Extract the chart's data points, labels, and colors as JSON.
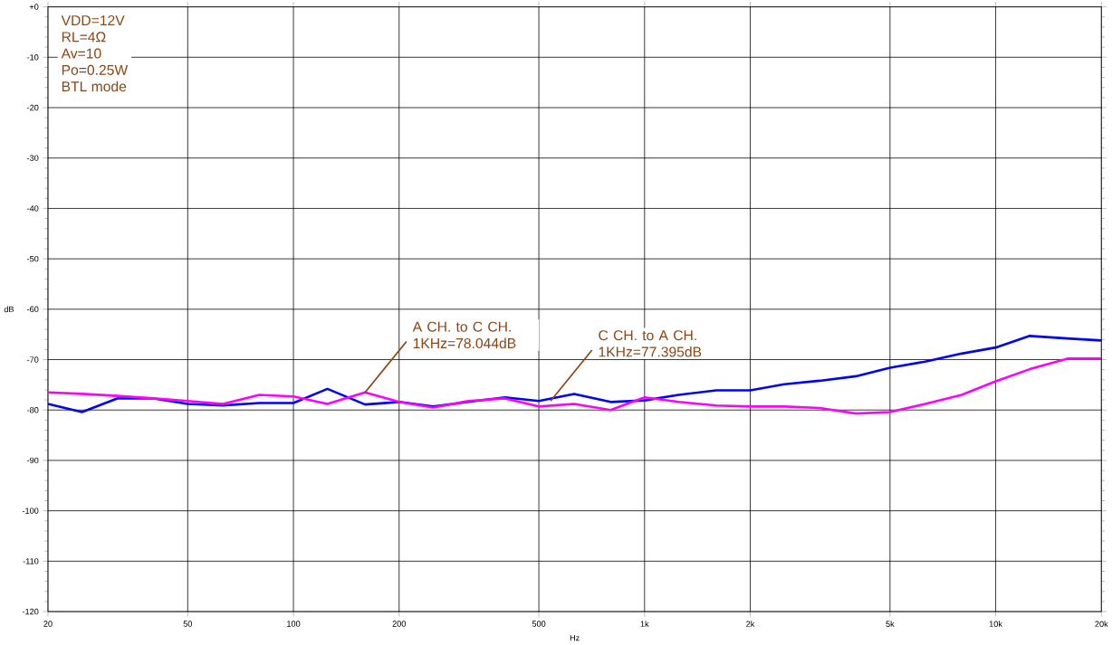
{
  "chart_data": {
    "type": "line",
    "xlabel": "Hz",
    "ylabel": "dB",
    "log": "x",
    "grid": true,
    "marker": "none",
    "line_style": "solid",
    "x": [
      20,
      25,
      31.5,
      40,
      50,
      63,
      80,
      100,
      125,
      160,
      200,
      250,
      315,
      400,
      500,
      630,
      800,
      1000,
      1250,
      1600,
      2000,
      2500,
      3150,
      4000,
      5000,
      6300,
      8000,
      10000,
      12500,
      16000,
      20000
    ],
    "series": [
      {
        "color": "#0000ff",
        "values": [
          -78.8,
          -80.4,
          -77.7,
          -77.7,
          -78.8,
          -79.1,
          -78.6,
          -78.6,
          -75.8,
          -78.9,
          -78.4,
          -79.3,
          -78.4,
          -77.5,
          -78.2,
          -76.8,
          -78.4,
          -78.1,
          -77.0,
          -76.1,
          -76.1,
          -74.9,
          -74.2,
          -73.3,
          -71.6,
          -70.4,
          -68.8,
          -67.6,
          -65.3,
          -65.8,
          -66.2
        ]
      },
      {
        "color": "#ff00ff",
        "values": [
          -76.5,
          -76.8,
          -77.2,
          -77.7,
          -78.2,
          -78.8,
          -77.0,
          -77.3,
          -78.8,
          -76.5,
          -78.4,
          -79.5,
          -78.2,
          -77.7,
          -79.3,
          -78.8,
          -80.0,
          -77.5,
          -78.4,
          -79.1,
          -79.3,
          -79.3,
          -79.6,
          -80.7,
          -80.4,
          -78.8,
          -77.0,
          -74.3,
          -71.9,
          -69.8,
          -69.8
        ]
      }
    ],
    "xlim": [
      20,
      20000
    ],
    "xticks": [
      20,
      50,
      100,
      200,
      500,
      {
        "value": 1000,
        "label": "1k"
      },
      {
        "value": 2000,
        "label": "2k"
      },
      {
        "value": 5000,
        "label": "5k"
      },
      {
        "value": 10000,
        "label": "10k"
      },
      {
        "value": 20000,
        "label": "20k"
      }
    ],
    "ylim": [
      -120,
      0
    ],
    "yticks": [
      {
        "value": 0,
        "label": "+0"
      },
      -10,
      -20,
      -30,
      -40,
      -50,
      -60,
      -70,
      -80,
      -90,
      -100,
      -110,
      -120
    ],
    "annotations": [
      "VDD=12V",
      "RL=4Ω",
      "Av=10",
      "Po=0.25W",
      "BTL mode",
      {
        "text": "A CH. to C CH. 1KHz=78.044dB",
        "x": 160,
        "y": -76.5
      },
      {
        "text": "C CH. to A CH. 1KHz=77.395dB",
        "x": 540,
        "y": -78.2
      }
    ]
  }
}
